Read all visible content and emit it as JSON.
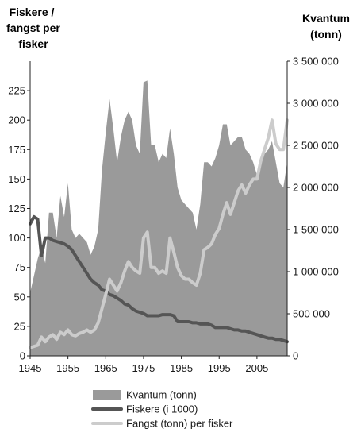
{
  "chart_data": {
    "type": "area",
    "left_axis_title": [
      "Fiskere /",
      "fangst per",
      "fisker"
    ],
    "right_axis_title": [
      "Kvantum",
      "(tonn)"
    ],
    "x_ticks": [
      1945,
      1955,
      1965,
      1975,
      1985,
      1995,
      2005
    ],
    "xlim": [
      1945,
      2013
    ],
    "left_ticks": [
      0,
      25,
      50,
      75,
      100,
      125,
      150,
      175,
      200,
      225
    ],
    "left_tick_labels": [
      "0",
      "25",
      "50",
      "75",
      "100",
      "125",
      "150",
      "175",
      "200",
      "225"
    ],
    "ylim_left": [
      0,
      250
    ],
    "right_ticks": [
      0,
      500000,
      1000000,
      1500000,
      2000000,
      2500000,
      3000000,
      3500000
    ],
    "right_tick_labels": [
      "0",
      "500 000",
      "1 000 000",
      "1 500 000",
      "2 000 000",
      "2 500 000",
      "3 000 000",
      "3 500 000"
    ],
    "ylim_right": [
      0,
      3500000
    ],
    "legend_placement": "bottom",
    "series": [
      {
        "name": "Kvantum (tonn)",
        "axis": "right",
        "kind": "area",
        "color": "#9a9a9a",
        "x": [
          1945,
          1946,
          1947,
          1948,
          1949,
          1950,
          1951,
          1952,
          1953,
          1954,
          1955,
          1956,
          1957,
          1958,
          1959,
          1960,
          1961,
          1962,
          1963,
          1964,
          1965,
          1966,
          1967,
          1968,
          1969,
          1970,
          1971,
          1972,
          1973,
          1974,
          1975,
          1976,
          1977,
          1978,
          1979,
          1980,
          1981,
          1982,
          1983,
          1984,
          1985,
          1986,
          1987,
          1988,
          1989,
          1990,
          1991,
          1992,
          1993,
          1994,
          1995,
          1996,
          1997,
          1998,
          1999,
          2000,
          2001,
          2002,
          2003,
          2004,
          2005,
          2006,
          2007,
          2008,
          2009,
          2010,
          2011,
          2012,
          2013
        ],
        "values": [
          750000,
          950000,
          1150000,
          1300000,
          1100000,
          1700000,
          1700000,
          1400000,
          1900000,
          1650000,
          2050000,
          1500000,
          1400000,
          1450000,
          1400000,
          1350000,
          1200000,
          1300000,
          1500000,
          2200000,
          2650000,
          3050000,
          2700000,
          2300000,
          2600000,
          2800000,
          2900000,
          2800000,
          2500000,
          2400000,
          3250000,
          3270000,
          2500000,
          2500000,
          2300000,
          2400000,
          2350000,
          2700000,
          2400000,
          2000000,
          1850000,
          1800000,
          1750000,
          1700000,
          1500000,
          1800000,
          2300000,
          2300000,
          2250000,
          2350000,
          2500000,
          2750000,
          2750000,
          2500000,
          2550000,
          2600000,
          2600000,
          2450000,
          2400000,
          2300000,
          2150000,
          2300000,
          2400000,
          2450000,
          2550000,
          2300000,
          2050000,
          2000000,
          2300000
        ]
      },
      {
        "name": "Fiskere (i 1000)",
        "axis": "left",
        "kind": "line",
        "color": "#555555",
        "x": [
          1945,
          1946,
          1947,
          1948,
          1949,
          1950,
          1951,
          1952,
          1953,
          1954,
          1955,
          1956,
          1957,
          1958,
          1959,
          1960,
          1961,
          1962,
          1963,
          1964,
          1965,
          1966,
          1967,
          1968,
          1969,
          1970,
          1971,
          1972,
          1973,
          1974,
          1975,
          1976,
          1977,
          1978,
          1979,
          1980,
          1981,
          1982,
          1983,
          1984,
          1985,
          1986,
          1987,
          1988,
          1989,
          1990,
          1991,
          1992,
          1993,
          1994,
          1995,
          1996,
          1997,
          1998,
          1999,
          2000,
          2001,
          2002,
          2003,
          2004,
          2005,
          2006,
          2007,
          2008,
          2009,
          2010,
          2011,
          2012,
          2013
        ],
        "values": [
          112,
          118,
          116,
          85,
          100,
          100,
          98,
          97,
          96,
          95,
          93,
          90,
          85,
          80,
          75,
          70,
          65,
          62,
          60,
          56,
          55,
          52,
          51,
          49,
          47,
          44,
          43,
          40,
          38,
          37,
          36,
          34,
          34,
          34,
          34,
          35,
          35,
          35,
          34,
          29,
          29,
          29,
          29,
          28,
          28,
          27,
          27,
          27,
          26,
          24,
          24,
          24,
          24,
          23,
          22,
          22,
          21,
          21,
          20,
          19,
          18,
          17,
          16,
          15,
          15,
          14,
          14,
          13,
          12
        ]
      },
      {
        "name": "Fangst (tonn) per fisker",
        "axis": "left",
        "kind": "line",
        "color": "#cccccc",
        "x": [
          1945,
          1946,
          1947,
          1948,
          1949,
          1950,
          1951,
          1952,
          1953,
          1954,
          1955,
          1956,
          1957,
          1958,
          1959,
          1960,
          1961,
          1962,
          1963,
          1964,
          1965,
          1966,
          1967,
          1968,
          1969,
          1970,
          1971,
          1972,
          1973,
          1974,
          1975,
          1976,
          1977,
          1978,
          1979,
          1980,
          1981,
          1982,
          1983,
          1984,
          1985,
          1986,
          1987,
          1988,
          1989,
          1990,
          1991,
          1992,
          1993,
          1994,
          1995,
          1996,
          1997,
          1998,
          1999,
          2000,
          2001,
          2002,
          2003,
          2004,
          2005,
          2006,
          2007,
          2008,
          2009,
          2010,
          2011,
          2012,
          2013
        ],
        "values": [
          7,
          8,
          9,
          16,
          12,
          16,
          18,
          14,
          20,
          18,
          22,
          18,
          17,
          19,
          20,
          22,
          20,
          22,
          28,
          40,
          52,
          65,
          60,
          55,
          62,
          72,
          80,
          75,
          72,
          70,
          100,
          105,
          75,
          75,
          70,
          72,
          70,
          100,
          88,
          75,
          68,
          65,
          65,
          62,
          60,
          70,
          90,
          92,
          95,
          103,
          108,
          120,
          130,
          120,
          130,
          140,
          145,
          138,
          145,
          150,
          150,
          165,
          175,
          185,
          200,
          180,
          175,
          175,
          200
        ]
      }
    ]
  }
}
